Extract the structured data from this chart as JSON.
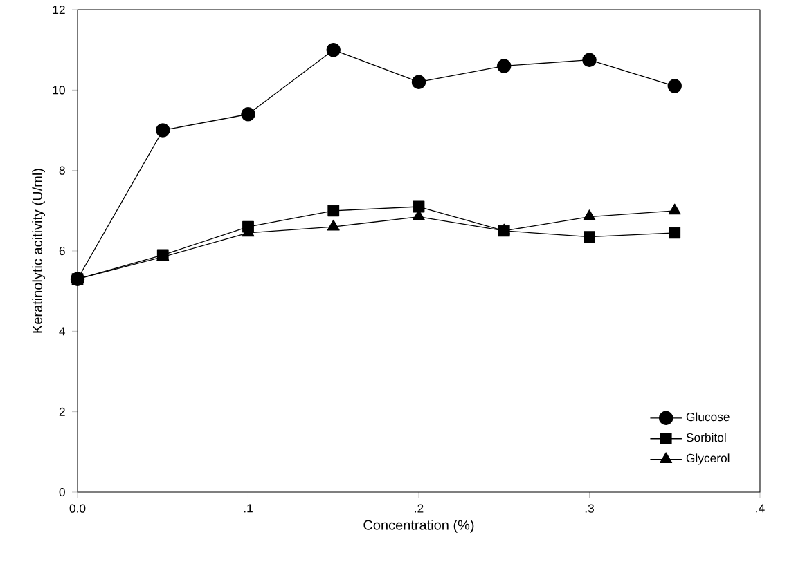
{
  "chart_data": {
    "type": "line",
    "xlabel": "Concentration (%)",
    "ylabel": "Keratinolytic acitivity (U/ml)",
    "x": [
      0,
      0.05,
      0.1,
      0.15,
      0.2,
      0.25,
      0.3,
      0.35
    ],
    "series": [
      {
        "name": "Glucose",
        "color": "#000000",
        "marker": "circle",
        "values": [
          5.3,
          9.0,
          9.4,
          11.0,
          10.2,
          10.6,
          10.75,
          10.1
        ]
      },
      {
        "name": "Sorbitol",
        "color": "#000000",
        "marker": "square",
        "values": [
          5.3,
          5.9,
          6.6,
          7.0,
          7.1,
          6.5,
          6.35,
          6.45
        ]
      },
      {
        "name": "Glycerol",
        "color": "#000000",
        "marker": "triangle",
        "values": [
          5.3,
          5.85,
          6.45,
          6.6,
          6.85,
          6.5,
          6.85,
          7.0
        ]
      }
    ],
    "xlim": [
      0,
      0.4
    ],
    "ylim": [
      0,
      12
    ],
    "xticks": [
      {
        "value": 0,
        "label": "0.0"
      },
      {
        "value": 0.1,
        "label": ".1"
      },
      {
        "value": 0.2,
        "label": ".2"
      },
      {
        "value": 0.3,
        "label": ".3"
      },
      {
        "value": 0.4,
        "label": ".4"
      }
    ],
    "yticks": [
      0,
      2,
      4,
      6,
      8,
      10,
      12
    ],
    "grid": false,
    "legend": "bottom right",
    "line_style": "solid"
  }
}
